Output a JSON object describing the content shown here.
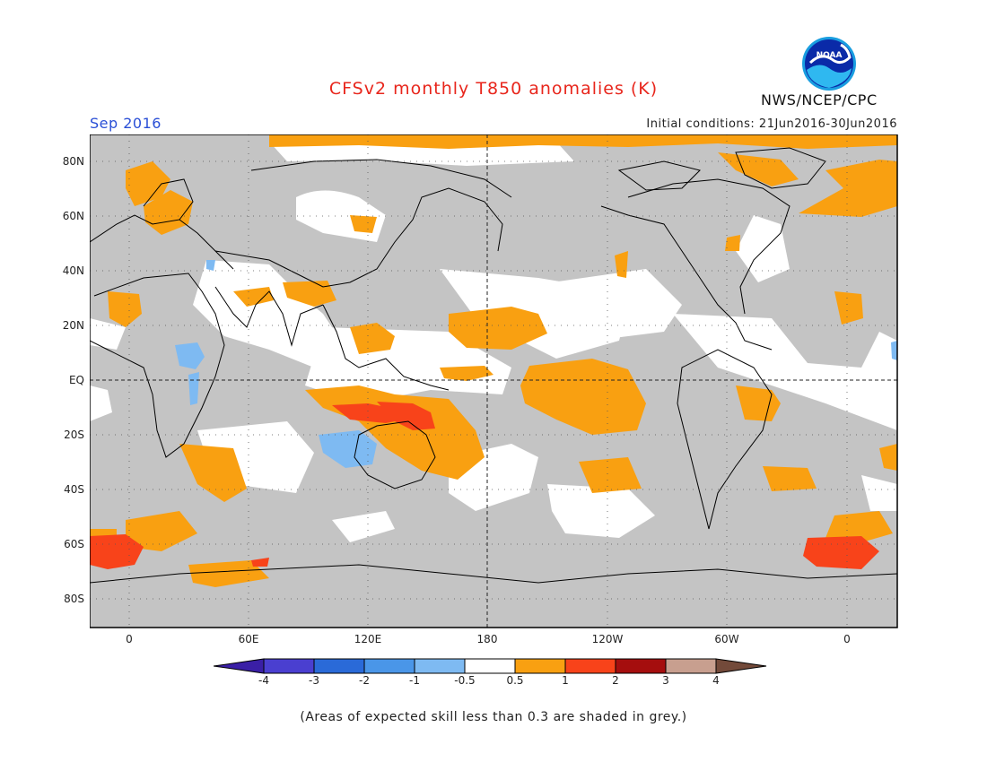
{
  "header": {
    "title": "CFSv2 monthly T850 anomalies (K)",
    "agency": "NWS/NCEP/CPC",
    "period": "Sep 2016",
    "initial_conditions": "Initial conditions: 21Jun2016-30Jun2016"
  },
  "logo": {
    "text": "NOAA"
  },
  "map": {
    "y_axis_labels": [
      "80N",
      "60N",
      "40N",
      "20N",
      "EQ",
      "20S",
      "40S",
      "60S",
      "80S"
    ],
    "x_axis_labels": [
      "0",
      "60E",
      "120E",
      "180",
      "120W",
      "60W",
      "0"
    ]
  },
  "colorbar": {
    "labels": [
      "-4",
      "-3",
      "-2",
      "-1",
      "-0.5",
      "0.5",
      "1",
      "2",
      "3",
      "4"
    ],
    "colors": [
      "#3a1fa6",
      "#4a3fd0",
      "#2a6ad8",
      "#4a96e8",
      "#7ebaf2",
      "#ffffff",
      "#f9a011",
      "#f8431a",
      "#a50e0e",
      "#c89f8f",
      "#734a3a"
    ]
  },
  "colors": {
    "skill_grey": "#c4c4c4",
    "positive_weak": "#f9a011",
    "positive_strong": "#f8431a",
    "negative_weak": "#7ebaf2",
    "title_red": "#e8261c",
    "period_blue": "#2a4fd6"
  },
  "footnote": "(Areas of expected skill less than 0.3 are shaded in grey.)"
}
